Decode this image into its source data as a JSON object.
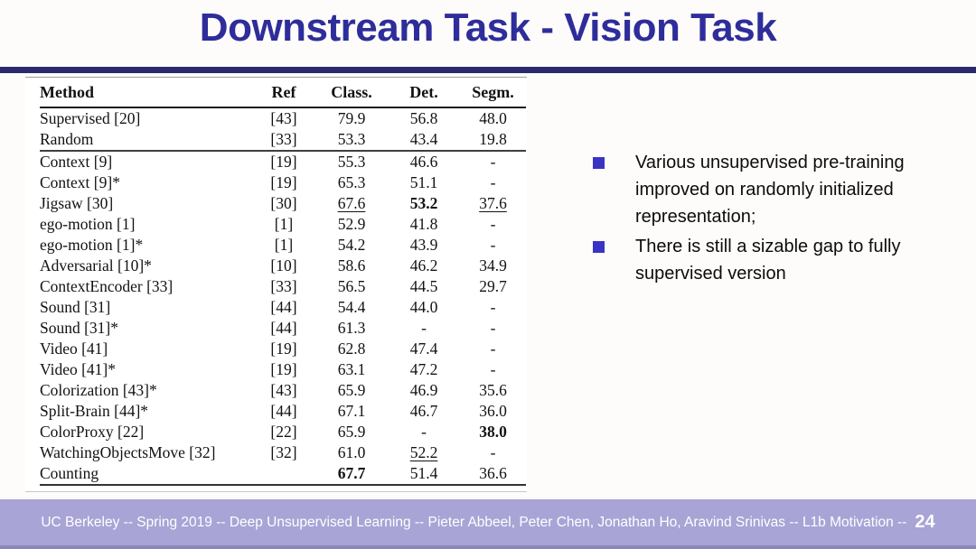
{
  "slide": {
    "title": "Downstream Task - Vision Task",
    "bullets": [
      "Various unsupervised pre-training improved on randomly initialized representation;",
      "There is still a sizable gap to fully supervised version"
    ],
    "footer": {
      "text": "UC Berkeley -- Spring 2019 -- Deep Unsupervised Learning -- Pieter Abbeel, Peter Chen, Jonathan Ho, Aravind Srinivas -- L1b Motivation --",
      "page_number": "24"
    },
    "colors": {
      "title": "#2e2d9b",
      "title_rule": "#2b2a6e",
      "bullet_square": "#3a34c4",
      "footer_bg": "#a8a4d6",
      "footer_text": "#ffffff",
      "table_text": "#121212"
    }
  },
  "chart_data": {
    "type": "table",
    "columns": [
      "Method",
      "Ref",
      "Class.",
      "Det.",
      "Segm."
    ],
    "rows": [
      {
        "cells": [
          "Supervised [20]",
          "[43]",
          "79.9",
          "56.8",
          "48.0"
        ]
      },
      {
        "cells": [
          "Random",
          "[33]",
          "53.3",
          "43.4",
          "19.8"
        ],
        "separator_below": true
      },
      {
        "cells": [
          "Context [9]",
          "[19]",
          "55.3",
          "46.6",
          "-"
        ]
      },
      {
        "cells": [
          "Context [9]*",
          "[19]",
          "65.3",
          "51.1",
          "-"
        ]
      },
      {
        "cells": [
          "Jigsaw [30]",
          "[30]",
          {
            "text": "67.6",
            "style": "underline"
          },
          {
            "text": "53.2",
            "style": "bold"
          },
          {
            "text": "37.6",
            "style": "underline"
          }
        ]
      },
      {
        "cells": [
          "ego-motion [1]",
          "[1]",
          "52.9",
          "41.8",
          "-"
        ]
      },
      {
        "cells": [
          "ego-motion [1]*",
          "[1]",
          "54.2",
          "43.9",
          "-"
        ]
      },
      {
        "cells": [
          "Adversarial [10]*",
          "[10]",
          "58.6",
          "46.2",
          "34.9"
        ]
      },
      {
        "cells": [
          "ContextEncoder [33]",
          "[33]",
          "56.5",
          "44.5",
          "29.7"
        ]
      },
      {
        "cells": [
          "Sound [31]",
          "[44]",
          "54.4",
          "44.0",
          "-"
        ]
      },
      {
        "cells": [
          "Sound [31]*",
          "[44]",
          "61.3",
          "-",
          "-"
        ]
      },
      {
        "cells": [
          "Video [41]",
          "[19]",
          "62.8",
          "47.4",
          "-"
        ]
      },
      {
        "cells": [
          "Video [41]*",
          "[19]",
          "63.1",
          "47.2",
          "-"
        ]
      },
      {
        "cells": [
          "Colorization [43]*",
          "[43]",
          "65.9",
          "46.9",
          "35.6"
        ]
      },
      {
        "cells": [
          "Split-Brain [44]*",
          "[44]",
          "67.1",
          "46.7",
          "36.0"
        ]
      },
      {
        "cells": [
          "ColorProxy [22]",
          "[22]",
          "65.9",
          "-",
          {
            "text": "38.0",
            "style": "bold"
          }
        ]
      },
      {
        "cells": [
          "WatchingObjectsMove [32]",
          "[32]",
          "61.0",
          {
            "text": "52.2",
            "style": "underline"
          },
          "-"
        ]
      },
      {
        "cells": [
          "Counting",
          "",
          {
            "text": "67.7",
            "style": "bold"
          },
          "51.4",
          "36.6"
        ]
      }
    ]
  }
}
